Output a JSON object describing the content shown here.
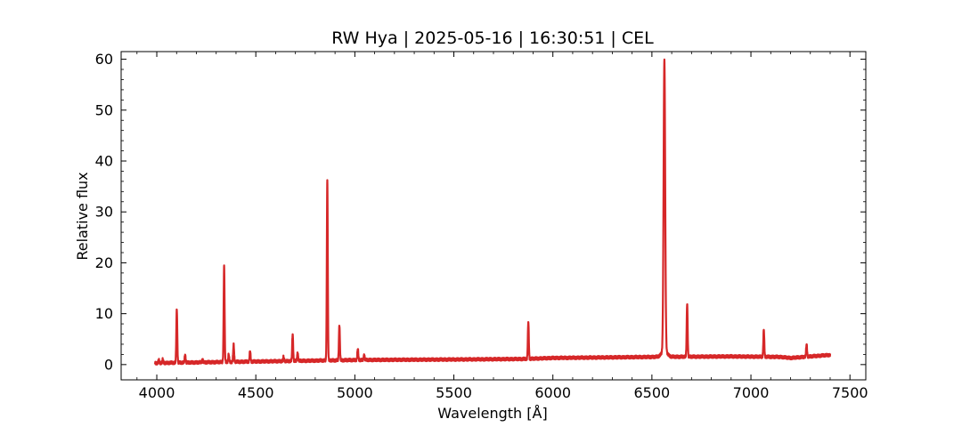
{
  "chart_data": {
    "type": "line",
    "title": "RW Hya | 2025-05-16 | 16:30:51 | CEL",
    "xlabel": "Wavelength [Å]",
    "ylabel": "Relative flux",
    "xlim": [
      3820,
      7580
    ],
    "ylim": [
      -3.0,
      61.5
    ],
    "xticks": [
      4000,
      4500,
      5000,
      5500,
      6000,
      6500,
      7000,
      7500
    ],
    "yticks": [
      0,
      10,
      20,
      30,
      40,
      50,
      60
    ],
    "grid": false,
    "legend": "none",
    "series": [
      {
        "color": "#d62728",
        "continuum": [
          [
            3990,
            0.3
          ],
          [
            4500,
            0.6
          ],
          [
            5000,
            0.9
          ],
          [
            5500,
            1.0
          ],
          [
            5860,
            1.1
          ],
          [
            6000,
            1.3
          ],
          [
            6500,
            1.5
          ],
          [
            6900,
            1.6
          ],
          [
            7150,
            1.5
          ],
          [
            7200,
            1.3
          ],
          [
            7400,
            1.9
          ]
        ],
        "emission_lines": [
          {
            "x": 4010,
            "peak": 0.9
          },
          {
            "x": 4030,
            "peak": 1.0
          },
          {
            "x": 4101,
            "peak": 10.9
          },
          {
            "x": 4143,
            "peak": 1.9
          },
          {
            "x": 4231,
            "peak": 1.0
          },
          {
            "x": 4340,
            "peak": 19.3
          },
          {
            "x": 4363,
            "peak": 2.0
          },
          {
            "x": 4388,
            "peak": 3.9
          },
          {
            "x": 4471,
            "peak": 2.7
          },
          {
            "x": 4640,
            "peak": 1.5
          },
          {
            "x": 4686,
            "peak": 6.0
          },
          {
            "x": 4711,
            "peak": 2.3
          },
          {
            "x": 4861,
            "peak": 36.1
          },
          {
            "x": 4922,
            "peak": 7.8
          },
          {
            "x": 5015,
            "peak": 3.1
          },
          {
            "x": 5047,
            "peak": 1.9
          },
          {
            "x": 5876,
            "peak": 8.4
          },
          {
            "x": 6563,
            "peak": 58.8
          },
          {
            "x": 6678,
            "peak": 12.0
          },
          {
            "x": 7065,
            "peak": 6.9
          },
          {
            "x": 7281,
            "peak": 4.0
          }
        ]
      }
    ]
  }
}
